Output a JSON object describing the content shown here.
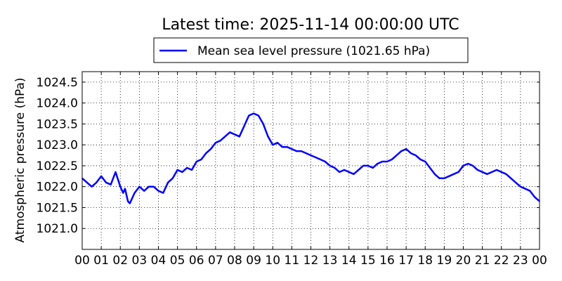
{
  "chart_data": {
    "type": "line",
    "title": "Latest time: 2025-11-14 00:00:00 UTC",
    "ylabel": "Atmospheric pressure (hPa)",
    "xlabel": "",
    "xlim": [
      0,
      24
    ],
    "ylim": [
      1020.5,
      1024.75
    ],
    "grid": true,
    "legend_position": "top-center",
    "x_tick_labels": [
      "00",
      "01",
      "02",
      "03",
      "04",
      "05",
      "06",
      "07",
      "08",
      "09",
      "10",
      "11",
      "12",
      "13",
      "14",
      "15",
      "16",
      "17",
      "18",
      "19",
      "20",
      "21",
      "22",
      "23",
      "00"
    ],
    "y_ticks": [
      1021.0,
      1021.5,
      1022.0,
      1022.5,
      1023.0,
      1023.5,
      1024.0,
      1024.5
    ],
    "y_tick_labels": [
      "1021.0",
      "1021.5",
      "1022.0",
      "1022.5",
      "1023.0",
      "1023.5",
      "1024.0",
      "1024.5"
    ],
    "series": [
      {
        "name": "Mean sea level pressure (1021.65 hPa)",
        "color": "#0000ff",
        "x": [
          0.0,
          0.25,
          0.5,
          0.75,
          1.0,
          1.25,
          1.5,
          1.75,
          2.0,
          2.15,
          2.25,
          2.4,
          2.5,
          2.75,
          3.0,
          3.25,
          3.5,
          3.75,
          4.0,
          4.25,
          4.5,
          4.75,
          5.0,
          5.25,
          5.5,
          5.75,
          6.0,
          6.25,
          6.5,
          6.75,
          7.0,
          7.25,
          7.5,
          7.75,
          8.0,
          8.25,
          8.5,
          8.75,
          9.0,
          9.25,
          9.5,
          9.75,
          10.0,
          10.25,
          10.5,
          10.75,
          11.0,
          11.25,
          11.5,
          11.75,
          12.0,
          12.25,
          12.5,
          12.75,
          13.0,
          13.25,
          13.5,
          13.75,
          14.0,
          14.25,
          14.5,
          14.75,
          15.0,
          15.25,
          15.5,
          15.75,
          16.0,
          16.25,
          16.5,
          16.75,
          17.0,
          17.25,
          17.5,
          17.75,
          18.0,
          18.25,
          18.5,
          18.75,
          19.0,
          19.25,
          19.5,
          19.75,
          20.0,
          20.25,
          20.5,
          20.75,
          21.0,
          21.25,
          21.5,
          21.75,
          22.0,
          22.25,
          22.5,
          22.75,
          23.0,
          23.25,
          23.5,
          23.75,
          24.0
        ],
        "values": [
          1022.2,
          1022.1,
          1022.0,
          1022.1,
          1022.25,
          1022.1,
          1022.05,
          1022.35,
          1022.0,
          1021.85,
          1021.95,
          1021.65,
          1021.6,
          1021.85,
          1022.0,
          1021.9,
          1022.0,
          1022.0,
          1021.9,
          1021.85,
          1022.1,
          1022.2,
          1022.4,
          1022.35,
          1022.45,
          1022.4,
          1022.6,
          1022.65,
          1022.8,
          1022.9,
          1023.05,
          1023.1,
          1023.2,
          1023.3,
          1023.25,
          1023.2,
          1023.45,
          1023.7,
          1023.75,
          1023.7,
          1023.5,
          1023.2,
          1023.0,
          1023.05,
          1022.95,
          1022.95,
          1022.9,
          1022.85,
          1022.85,
          1022.8,
          1022.75,
          1022.7,
          1022.65,
          1022.6,
          1022.5,
          1022.45,
          1022.35,
          1022.4,
          1022.35,
          1022.3,
          1022.4,
          1022.5,
          1022.5,
          1022.45,
          1022.55,
          1022.6,
          1022.6,
          1022.65,
          1022.75,
          1022.85,
          1022.9,
          1022.8,
          1022.75,
          1022.65,
          1022.6,
          1022.45,
          1022.3,
          1022.2,
          1022.2,
          1022.25,
          1022.3,
          1022.35,
          1022.5,
          1022.55,
          1022.5,
          1022.4,
          1022.35,
          1022.3,
          1022.35,
          1022.4,
          1022.35,
          1022.3,
          1022.2,
          1022.1,
          1022.0,
          1021.95,
          1021.9,
          1021.75,
          1021.65
        ]
      }
    ]
  }
}
